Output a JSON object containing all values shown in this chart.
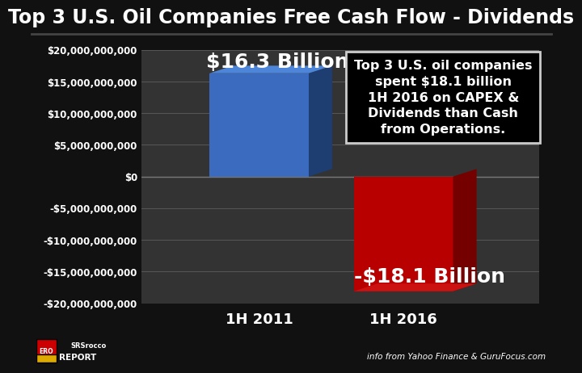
{
  "title": "Top 3 U.S. Oil Companies Free Cash Flow - Dividends",
  "categories": [
    "1H 2011",
    "1H 2016"
  ],
  "values": [
    16300000000,
    -18100000000
  ],
  "bar_colors": [
    "#3a6bbf",
    "#b80000"
  ],
  "bar_side_colors": [
    "#1e3d70",
    "#750000"
  ],
  "bar_top_colors": [
    "#4d85d9",
    "#cc1111"
  ],
  "background_color": "#111111",
  "plot_bg_color": "#333333",
  "title_color": "#ffffff",
  "tick_color": "#ffffff",
  "ylim": [
    -20000000000,
    20000000000
  ],
  "yticks": [
    -20000000000,
    -15000000000,
    -10000000000,
    -5000000000,
    0,
    5000000000,
    10000000000,
    15000000000,
    20000000000
  ],
  "ytick_labels": [
    "-$20,000,000,000",
    "-$15,000,000,000",
    "-$10,000,000,000",
    "-$5,000,000,000",
    "$0",
    "$5,000,000,000",
    "$10,000,000,000",
    "$15,000,000,000",
    "$20,000,000,000"
  ],
  "bar_labels": [
    "$16.3 Billion",
    "-$18.1 Billion"
  ],
  "annotation_text": "Top 3 U.S. oil companies\nspent $18.1 billion\n1H 2016 on CAPEX &\nDividends than Cash\nfrom Operations.",
  "annotation_bg": "#000000",
  "annotation_border": "#cccccc",
  "footer_right": "info from Yahoo Finance & GuruFocus.com",
  "title_fontsize": 17,
  "tick_fontsize": 8.5,
  "xlabel_fontsize": 13,
  "bar_label_fontsize": 18,
  "annotation_fontsize": 11.5
}
